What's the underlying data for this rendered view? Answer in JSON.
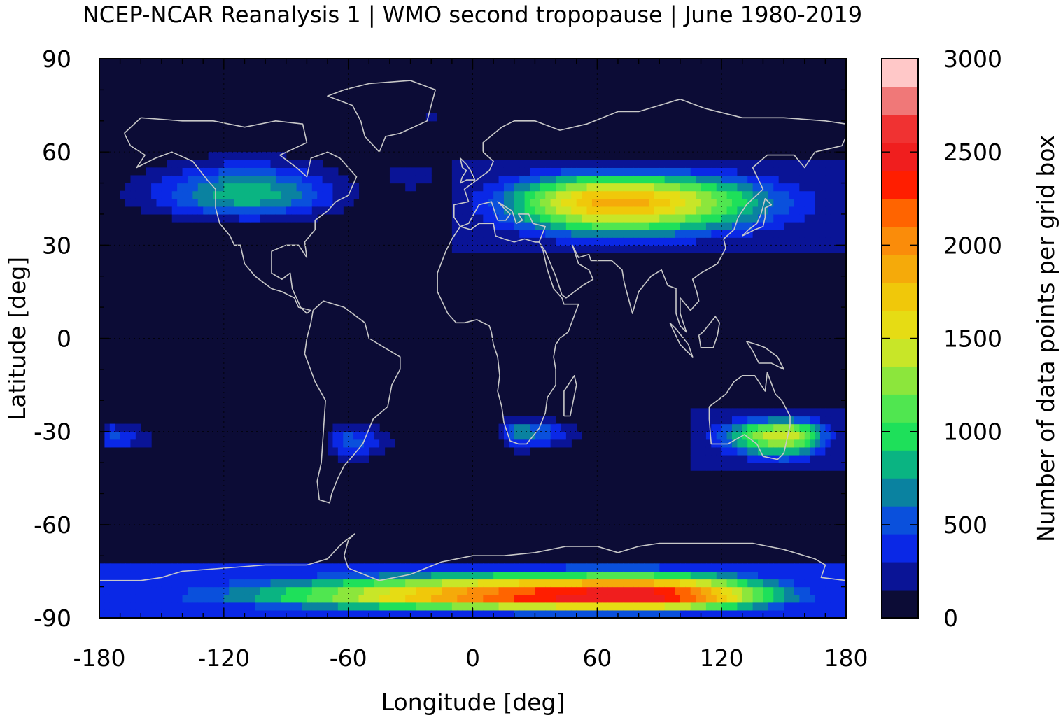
{
  "chart_data": {
    "type": "heatmap",
    "title": "NCEP-NCAR Reanalysis 1 | WMO second tropopause | June 1980-2019",
    "xlabel": "Longitude [deg]",
    "ylabel": "Latitude [deg]",
    "colorbar_label": "Number of data points per grid box",
    "xlim": [
      -180,
      180
    ],
    "ylim": [
      -90,
      90
    ],
    "x_ticks": [
      -180,
      -120,
      -60,
      0,
      60,
      120,
      180
    ],
    "y_ticks": [
      90,
      60,
      30,
      0,
      -30,
      -60,
      -90
    ],
    "x_tick_labels": [
      "-180",
      "-120",
      "-60",
      "0",
      "60",
      "120",
      "180"
    ],
    "y_tick_labels": [
      "90",
      "60",
      "30",
      "0",
      "-30",
      "-60",
      "-90"
    ],
    "colorbar_range": [
      0,
      3000
    ],
    "colorbar_ticks": [
      0,
      500,
      1000,
      1500,
      2000,
      2500,
      3000
    ],
    "colorbar_tick_labels": [
      "0",
      "500",
      "1000",
      "1500",
      "2000",
      "2500",
      "3000"
    ],
    "background_color": "#0c0c36",
    "coastline_color": "#c8c8c8",
    "grid": true,
    "colorscale": [
      "#0c0c36",
      "#0a1496",
      "#0a28e6",
      "#0a50dc",
      "#0a82a0",
      "#0ab482",
      "#1ee05a",
      "#50e650",
      "#8ce63c",
      "#c8e628",
      "#e6dc14",
      "#f0c80a",
      "#f5aa0a",
      "#fa8c0a",
      "#ff6400",
      "#ff1e00",
      "#f01e1e",
      "#f03232",
      "#f07878",
      "#ffc8c8"
    ],
    "regions": [
      {
        "name": "north-america",
        "lon": [
          -180,
          -45
        ],
        "lat": [
          35,
          62
        ],
        "peak_lon": -108,
        "peak_lat": 46,
        "peak_value": 850
      },
      {
        "name": "north-atlantic",
        "lon": [
          -50,
          -10
        ],
        "lat": [
          46,
          58
        ],
        "peak_lon": -30,
        "peak_lat": 52,
        "peak_value": 300
      },
      {
        "name": "greenland",
        "lon": [
          -25,
          -15
        ],
        "lat": [
          70,
          75
        ],
        "peak_lon": -20,
        "peak_lat": 72,
        "peak_value": 350
      },
      {
        "name": "eurasia",
        "lon": [
          -10,
          180
        ],
        "lat": [
          28,
          58
        ],
        "peak_lon": 68,
        "peak_lat": 44,
        "peak_value": 1900
      },
      {
        "name": "south-pacific-east",
        "lon": [
          -180,
          -145
        ],
        "lat": [
          -38,
          -25
        ],
        "peak_lon": -175,
        "peak_lat": -32,
        "peak_value": 500
      },
      {
        "name": "south-america",
        "lon": [
          -75,
          -30
        ],
        "lat": [
          -42,
          -25
        ],
        "peak_lon": -60,
        "peak_lat": -33,
        "peak_value": 520
      },
      {
        "name": "south-africa",
        "lon": [
          10,
          60
        ],
        "lat": [
          -38,
          -24
        ],
        "peak_lon": 22,
        "peak_lat": -30,
        "peak_value": 700
      },
      {
        "name": "australia",
        "lon": [
          105,
          180
        ],
        "lat": [
          -42,
          -23
        ],
        "peak_lon": 150,
        "peak_lat": -31,
        "peak_value": 1500
      },
      {
        "name": "antarctica",
        "lon": [
          -180,
          180
        ],
        "lat": [
          -90,
          -72
        ],
        "peak_lon": 78,
        "peak_lat": -83,
        "peak_value": 2600
      }
    ]
  }
}
